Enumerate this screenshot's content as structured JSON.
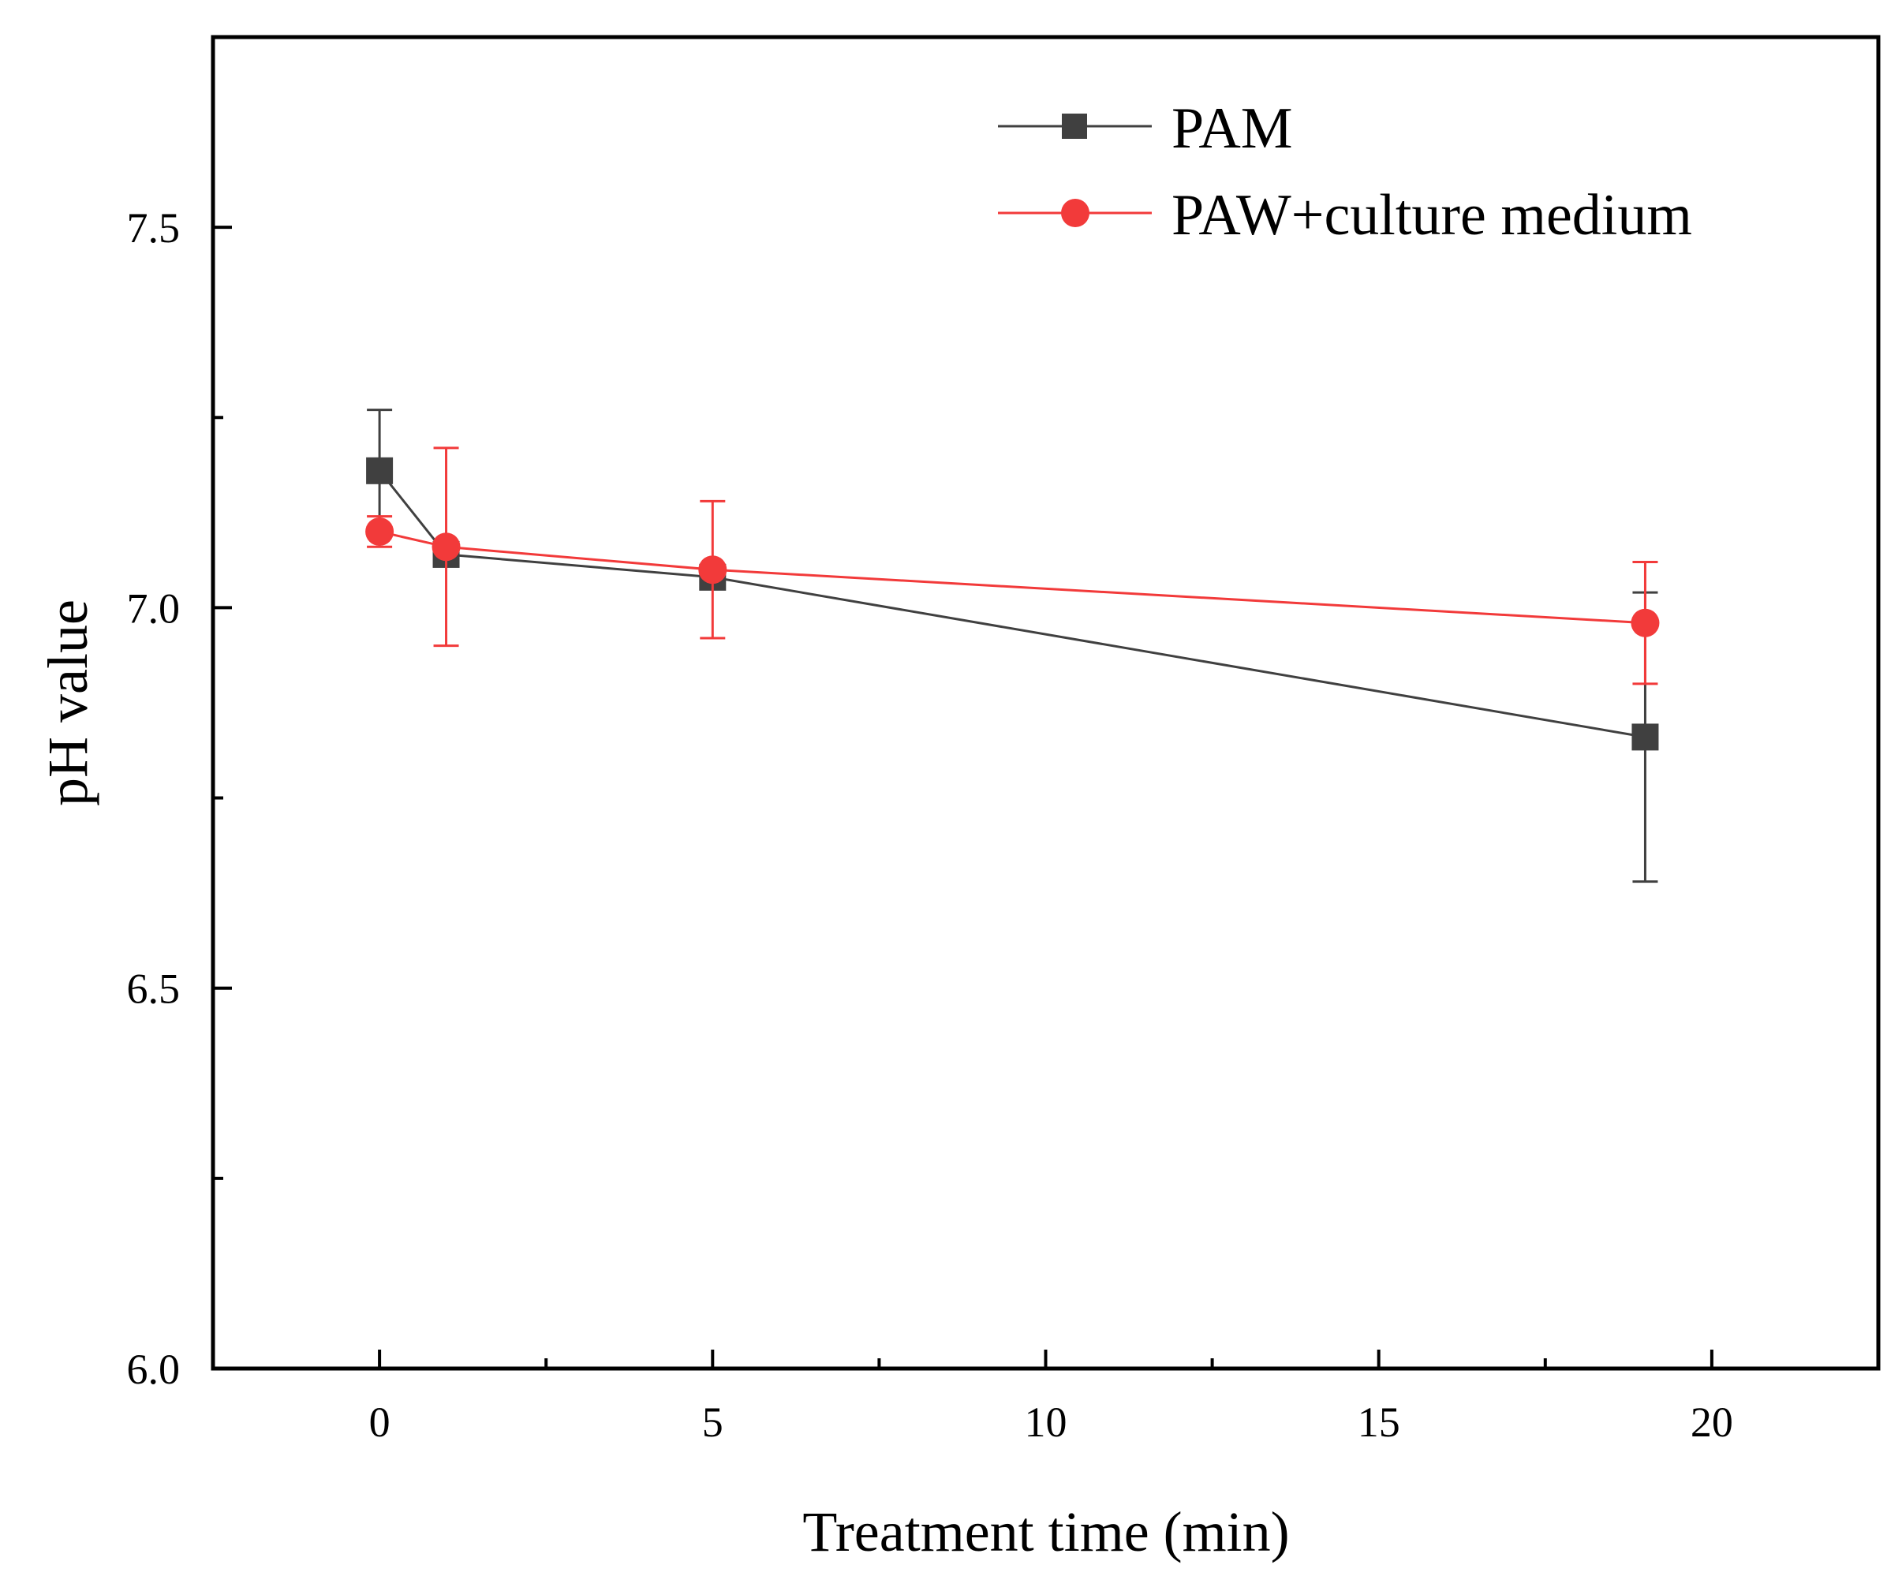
{
  "chart_data": {
    "type": "line",
    "title": "",
    "xlabel": "Treatment time (min)",
    "ylabel": "pH value",
    "xlim": [
      -2.5,
      22.5
    ],
    "ylim": [
      6.0,
      7.75
    ],
    "x_ticks": [
      0,
      5,
      10,
      15,
      20
    ],
    "x_minor_ticks": [
      2.5,
      7.5,
      12.5,
      17.5
    ],
    "x_tick_labels": [
      "0",
      "5",
      "10",
      "15",
      "20"
    ],
    "y_ticks": [
      6.0,
      6.5,
      7.0,
      7.5
    ],
    "y_minor_ticks": [
      6.25,
      6.75,
      7.25
    ],
    "y_tick_labels": [
      "6.0",
      "6.5",
      "7.0",
      "7.5"
    ],
    "legend_position": "top-right",
    "series": [
      {
        "name": "PAM",
        "color": "#404040",
        "marker": "square",
        "x": [
          0,
          1,
          5,
          19
        ],
        "y": [
          7.18,
          7.07,
          7.04,
          6.83
        ],
        "error": [
          0.08,
          0.01,
          0.01,
          0.19
        ]
      },
      {
        "name": "PAW+culture medium",
        "color": "#f23a3a",
        "marker": "circle",
        "x": [
          0,
          1,
          5,
          19
        ],
        "y": [
          7.1,
          7.08,
          7.05,
          6.98
        ],
        "error": [
          0.02,
          0.13,
          0.09,
          0.08
        ]
      }
    ]
  }
}
